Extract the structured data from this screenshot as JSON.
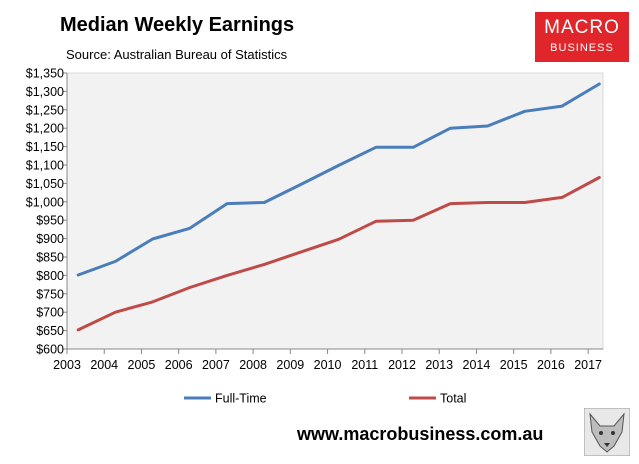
{
  "header": {
    "title": "Median Weekly Earnings",
    "subtitle": "Source: Australian Bureau of Statistics"
  },
  "logo": {
    "line1": "MACRO",
    "line2": "BUSINESS"
  },
  "footer": {
    "website": "www.macrobusiness.com.au"
  },
  "colors": {
    "full_time": "#4a7ebb",
    "total": "#be4b48",
    "plot_bg": "#f2f2f2",
    "logo_bg": "#e0262a"
  },
  "icons": {
    "fox": "fox-logo-icon"
  },
  "chart_data": {
    "type": "line",
    "title": "Median Weekly Earnings",
    "subtitle": "Source: Australian Bureau of Statistics",
    "x_tick_labels": [
      "2003",
      "2004",
      "2005",
      "2006",
      "2007",
      "2008",
      "2009",
      "2010",
      "2011",
      "2012",
      "2013",
      "2014",
      "2015",
      "2016",
      "2017"
    ],
    "y_tick_labels": [
      "$600",
      "$650",
      "$700",
      "$750",
      "$800",
      "$850",
      "$900",
      "$950",
      "$1,000",
      "$1,050",
      "$1,100",
      "$1,150",
      "$1,200",
      "$1,250",
      "$1,300",
      "$1,350"
    ],
    "xlim": [
      2003,
      2017.4
    ],
    "ylim": [
      600,
      1350
    ],
    "grid": false,
    "legend_position": "bottom",
    "series": [
      {
        "name": "Full-Time",
        "color": "#4a7ebb",
        "x": [
          2003.3,
          2004.3,
          2005.3,
          2006.3,
          2007.3,
          2008.3,
          2009.3,
          2010.3,
          2011.3,
          2012.3,
          2013.3,
          2014.3,
          2015.3,
          2016.3,
          2017.3
        ],
        "values": [
          801,
          838,
          899,
          928,
          995,
          998,
          1048,
          1099,
          1148,
          1148,
          1200,
          1206,
          1246,
          1260,
          1320
        ]
      },
      {
        "name": "Total",
        "color": "#be4b48",
        "x": [
          2003.3,
          2004.3,
          2005.3,
          2006.3,
          2007.3,
          2008.3,
          2009.3,
          2010.3,
          2011.3,
          2012.3,
          2013.3,
          2014.3,
          2015.3,
          2016.3,
          2017.3
        ],
        "values": [
          652,
          700,
          728,
          767,
          800,
          830,
          864,
          898,
          947,
          950,
          995,
          998,
          998,
          1012,
          1066
        ]
      }
    ]
  }
}
